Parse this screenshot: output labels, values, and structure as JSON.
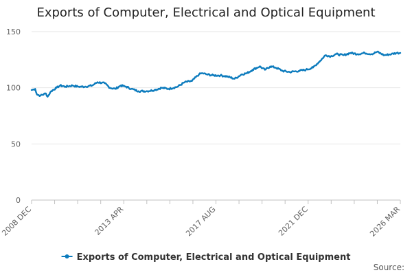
{
  "chart_data": {
    "type": "line",
    "title": "Exports of Computer, Electrical and Optical Equipment",
    "xlabel": "",
    "ylabel": "",
    "ylim": [
      0,
      150
    ],
    "yticks": [
      0,
      50,
      100,
      150
    ],
    "grid": true,
    "legend_placement": "bottom",
    "x_tick_labels": [
      "2008 DEC",
      "2013 APR",
      "2017 AUG",
      "2021 DEC",
      "2026 MAR"
    ],
    "x_start": "2008-12",
    "x_end": "2026-03",
    "series": [
      {
        "name": "Exports of Computer, Electrical and Optical Equipment",
        "color": "#0c7bbd",
        "points": [
          [
            "2008-12",
            98
          ],
          [
            "2009-02",
            99
          ],
          [
            "2009-03",
            94
          ],
          [
            "2009-05",
            93
          ],
          [
            "2009-08",
            95
          ],
          [
            "2009-09",
            92
          ],
          [
            "2009-11",
            97
          ],
          [
            "2010-02",
            100
          ],
          [
            "2010-04",
            102
          ],
          [
            "2010-07",
            101
          ],
          [
            "2010-11",
            102
          ],
          [
            "2011-02",
            101
          ],
          [
            "2011-06",
            101
          ],
          [
            "2011-10",
            102
          ],
          [
            "2012-01",
            105
          ],
          [
            "2012-05",
            104
          ],
          [
            "2012-08",
            100
          ],
          [
            "2012-11",
            99
          ],
          [
            "2013-02",
            102
          ],
          [
            "2013-05",
            101
          ],
          [
            "2013-08",
            99
          ],
          [
            "2013-12",
            97
          ],
          [
            "2014-05",
            97
          ],
          [
            "2014-09",
            98
          ],
          [
            "2015-01",
            100
          ],
          [
            "2015-05",
            99
          ],
          [
            "2015-10",
            101
          ],
          [
            "2016-02",
            105
          ],
          [
            "2016-06",
            106
          ],
          [
            "2016-10",
            112
          ],
          [
            "2016-12",
            113
          ],
          [
            "2017-02",
            112
          ],
          [
            "2017-06",
            111
          ],
          [
            "2017-10",
            111
          ],
          [
            "2018-02",
            110
          ],
          [
            "2018-06",
            108
          ],
          [
            "2018-10",
            112
          ],
          [
            "2019-01",
            113
          ],
          [
            "2019-04",
            116
          ],
          [
            "2019-08",
            119
          ],
          [
            "2019-11",
            116
          ],
          [
            "2020-02",
            119
          ],
          [
            "2020-05",
            118
          ],
          [
            "2020-09",
            115
          ],
          [
            "2021-01",
            114
          ],
          [
            "2021-06",
            115
          ],
          [
            "2021-10",
            116
          ],
          [
            "2022-02",
            118
          ],
          [
            "2022-06",
            124
          ],
          [
            "2022-09",
            129
          ],
          [
            "2022-12",
            128
          ],
          [
            "2023-03",
            130
          ],
          [
            "2023-07",
            129
          ],
          [
            "2023-11",
            131
          ],
          [
            "2024-03",
            130
          ],
          [
            "2024-07",
            131
          ],
          [
            "2024-11",
            130
          ],
          [
            "2025-02",
            132
          ],
          [
            "2025-06",
            129
          ],
          [
            "2025-10",
            130
          ],
          [
            "2026-01",
            131
          ],
          [
            "2026-03",
            131
          ]
        ]
      }
    ]
  },
  "footer": {
    "source_label": "Source:"
  }
}
